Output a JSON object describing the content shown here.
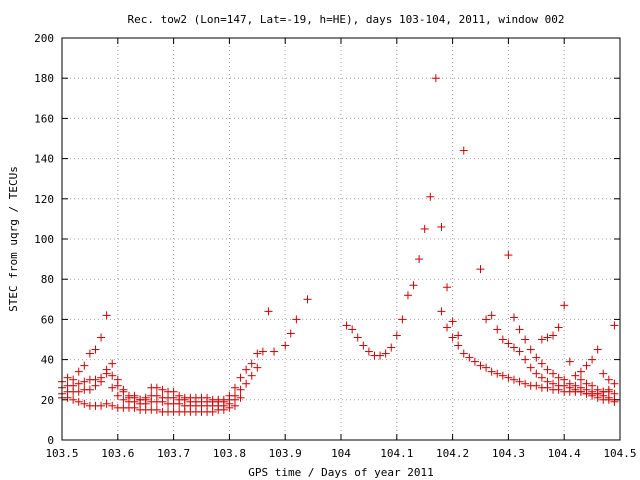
{
  "chart_data": {
    "type": "scatter",
    "title": "Rec. tow2 (Lon=147, Lat=-19, h=HE), days 103-104, 2011, window 002",
    "xlabel": "GPS time / Days of year 2011",
    "ylabel": "STEC from uqrg / TECUs",
    "xlim": [
      103.5,
      104.5
    ],
    "ylim": [
      0,
      200
    ],
    "xticks": [
      103.5,
      103.6,
      103.7,
      103.8,
      103.9,
      104,
      104.1,
      104.2,
      104.3,
      104.4,
      104.5
    ],
    "xtick_labels": [
      "103.5",
      "103.6",
      "103.7",
      "103.8",
      "103.9",
      "104",
      "104.1",
      "104.2",
      "104.3",
      "104.4",
      "104.5"
    ],
    "yticks": [
      0,
      20,
      40,
      60,
      80,
      100,
      120,
      140,
      160,
      180,
      200
    ],
    "ytick_labels": [
      "0",
      "20",
      "40",
      "60",
      "80",
      "100",
      "120",
      "140",
      "160",
      "180",
      "200"
    ],
    "grid": true,
    "marker": "+",
    "color": "#cc0000",
    "series": [
      {
        "x": [
          103.5,
          103.51,
          103.52,
          103.53,
          103.54,
          103.55,
          103.56,
          103.57,
          103.58,
          103.59,
          103.6,
          103.61,
          103.62,
          103.63,
          103.64,
          103.65,
          103.66,
          103.67,
          103.68,
          103.69,
          103.7,
          103.71,
          103.72,
          103.73,
          103.74,
          103.75,
          103.76,
          103.77,
          103.78,
          103.79,
          103.8,
          103.81,
          103.82,
          103.83,
          103.84,
          103.85,
          103.86,
          103.87,
          103.88,
          103.9,
          103.91,
          103.92,
          103.94
        ],
        "y": [
          29,
          31,
          30,
          34,
          37,
          43,
          45,
          51,
          62,
          38,
          30,
          24,
          21,
          22,
          20,
          21,
          26,
          26,
          25,
          24,
          24,
          22,
          21,
          21,
          21,
          21,
          21,
          20,
          20,
          20,
          22,
          26,
          31,
          35,
          38,
          43,
          44,
          64,
          44,
          47,
          53,
          60,
          70
        ]
      },
      {
        "x": [
          103.5,
          103.51,
          103.52,
          103.53,
          103.54,
          103.55,
          103.56,
          103.57,
          103.58,
          103.59,
          103.6,
          103.61,
          103.62,
          103.63,
          103.64,
          103.65,
          103.66,
          103.67,
          103.68,
          103.69,
          103.7,
          103.71,
          103.72,
          103.73,
          103.74,
          103.75,
          103.76,
          103.77,
          103.78,
          103.79,
          103.8,
          103.81,
          103.82,
          103.83,
          103.84,
          103.85
        ],
        "y": [
          26,
          27,
          27,
          28,
          29,
          30,
          30,
          31,
          35,
          32,
          27,
          25,
          22,
          21,
          20,
          20,
          22,
          22,
          21,
          21,
          21,
          20,
          20,
          19,
          19,
          19,
          19,
          19,
          19,
          19,
          20,
          22,
          25,
          28,
          32,
          36
        ]
      },
      {
        "x": [
          103.5,
          103.51,
          103.52,
          103.53,
          103.54,
          103.55,
          103.56,
          103.57,
          103.58,
          103.59,
          103.6,
          103.61,
          103.62,
          103.63,
          103.64,
          103.65,
          103.66,
          103.67,
          103.68,
          103.69,
          103.7,
          103.71,
          103.72,
          103.73,
          103.74,
          103.75,
          103.76,
          103.77,
          103.78,
          103.79,
          103.8,
          103.81,
          103.82
        ],
        "y": [
          23,
          24,
          24,
          24,
          25,
          25,
          27,
          29,
          33,
          26,
          22,
          20,
          19,
          19,
          18,
          18,
          19,
          19,
          19,
          18,
          18,
          18,
          17,
          17,
          17,
          17,
          17,
          17,
          17,
          17,
          18,
          20,
          21
        ]
      },
      {
        "x": [
          103.5,
          103.51,
          103.52,
          103.53,
          103.54,
          103.55,
          103.56,
          103.57,
          103.58,
          103.59,
          103.6,
          103.61,
          103.62,
          103.63,
          103.64,
          103.65,
          103.66,
          103.67,
          103.68,
          103.69,
          103.7,
          103.71,
          103.72,
          103.73,
          103.74,
          103.75,
          103.76,
          103.77,
          103.78,
          103.79,
          103.8,
          103.81
        ],
        "y": [
          21,
          21,
          20,
          19,
          18,
          17,
          17,
          17,
          18,
          17,
          16,
          16,
          16,
          16,
          15,
          15,
          15,
          15,
          14,
          14,
          14,
          14,
          14,
          14,
          14,
          14,
          14,
          14,
          15,
          15,
          16,
          17
        ]
      },
      {
        "x": [
          104.01,
          104.02,
          104.03,
          104.04,
          104.05,
          104.06,
          104.07,
          104.08,
          104.09,
          104.1,
          104.11,
          104.12,
          104.13,
          104.14,
          104.15,
          104.16,
          104.17,
          104.18,
          104.19,
          104.2,
          104.21,
          104.22
        ],
        "y": [
          57,
          55,
          51,
          47,
          44,
          42,
          42,
          43,
          46,
          52,
          60,
          72,
          77,
          90,
          105,
          121,
          180,
          106,
          76,
          59,
          52,
          144
        ]
      },
      {
        "x": [
          104.18,
          104.19,
          104.2,
          104.21,
          104.22,
          104.23,
          104.24,
          104.25,
          104.26,
          104.27,
          104.28,
          104.29,
          104.3,
          104.31,
          104.32,
          104.33,
          104.34,
          104.35,
          104.36,
          104.37,
          104.38,
          104.39,
          104.4,
          104.41,
          104.42,
          104.43,
          104.44,
          104.45,
          104.46,
          104.47,
          104.48,
          104.49
        ],
        "y": [
          64,
          56,
          51,
          47,
          43,
          41,
          39,
          37,
          36,
          34,
          33,
          32,
          31,
          30,
          29,
          28,
          27,
          27,
          26,
          26,
          25,
          25,
          24,
          24,
          24,
          24,
          23,
          23,
          23,
          24,
          25,
          28
        ]
      },
      {
        "x": [
          104.25,
          104.26,
          104.27,
          104.28,
          104.29,
          104.3,
          104.31,
          104.32,
          104.33,
          104.34,
          104.35,
          104.36,
          104.37,
          104.38,
          104.39,
          104.4,
          104.41,
          104.42,
          104.43,
          104.44,
          104.45,
          104.46,
          104.47,
          104.48,
          104.49
        ],
        "y": [
          85,
          60,
          62,
          55,
          50,
          48,
          46,
          44,
          40,
          36,
          33,
          31,
          29,
          28,
          27,
          27,
          26,
          25,
          24,
          23,
          22,
          21,
          20,
          20,
          19
        ]
      },
      {
        "x": [
          104.3,
          104.31,
          104.32,
          104.33,
          104.34,
          104.35,
          104.36,
          104.37,
          104.38,
          104.39,
          104.4,
          104.41,
          104.42,
          104.43,
          104.44,
          104.45,
          104.46,
          104.47,
          104.48,
          104.49
        ],
        "y": [
          92,
          61,
          55,
          50,
          45,
          41,
          38,
          35,
          33,
          31,
          30,
          28,
          27,
          26,
          25,
          24,
          23,
          22,
          21,
          20
        ]
      },
      {
        "x": [
          104.36,
          104.37,
          104.38,
          104.39,
          104.4,
          104.41,
          104.42,
          104.43,
          104.44,
          104.45,
          104.46,
          104.47,
          104.48,
          104.49
        ],
        "y": [
          50,
          51,
          52,
          56,
          67,
          39,
          32,
          30,
          28,
          27,
          25,
          24,
          24,
          23
        ]
      },
      {
        "x": [
          104.43,
          104.44,
          104.45,
          104.46,
          104.47,
          104.48,
          104.49
        ],
        "y": [
          34,
          37,
          40,
          45,
          33,
          30,
          57
        ]
      }
    ]
  }
}
